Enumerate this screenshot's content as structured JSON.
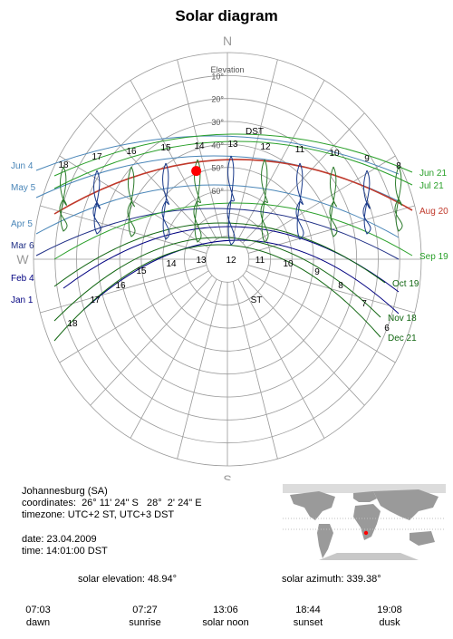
{
  "title": "Solar diagram",
  "compass": {
    "north": "N",
    "south": "S",
    "west": "W"
  },
  "elevation_label": "Elevation",
  "elevation_rings": [
    "10°",
    "20°",
    "30°",
    "40°",
    "50°",
    "60°"
  ],
  "time_modes": {
    "dst": "DST",
    "st": "ST"
  },
  "dst_hours": [
    "18",
    "17",
    "16",
    "15",
    "14",
    "13",
    "12",
    "11",
    "10",
    "9",
    "8"
  ],
  "st_hours": [
    "18",
    "17",
    "16",
    "15",
    "14",
    "13",
    "12",
    "11",
    "10",
    "9",
    "8",
    "7",
    "6"
  ],
  "date_curves": {
    "left": [
      {
        "label": "Jun 4",
        "color": "#4a86b8"
      },
      {
        "label": "May 5",
        "color": "#4a86b8"
      },
      {
        "label": "Apr 5",
        "color": "#4a86b8"
      },
      {
        "label": "Mar 6",
        "color": "#1f2f86"
      },
      {
        "label": "Feb 4",
        "color": "#000080"
      },
      {
        "label": "Jan 1",
        "color": "#000080"
      }
    ],
    "right": [
      {
        "label": "Jun 21",
        "color": "#2aa02a"
      },
      {
        "label": "Jul 21",
        "color": "#2aa02a"
      },
      {
        "label": "Aug 20",
        "color": "#c0392b"
      },
      {
        "label": "Sep 19",
        "color": "#2aa02a"
      },
      {
        "label": "Oct 19",
        "color": "#116611"
      },
      {
        "label": "Nov 18",
        "color": "#116611"
      },
      {
        "label": "Dec 21",
        "color": "#116611"
      }
    ]
  },
  "location": {
    "name": "Johannesburg (SA)",
    "coordinates_label": "coordinates:",
    "latitude": "26° 11' 24\" S",
    "longitude": "28°  2' 24\" E",
    "timezone_label": "timezone:",
    "timezone": "UTC+2 ST, UTC+3 DST"
  },
  "datetime": {
    "date_label": "date:",
    "date": "23.04.2009",
    "time_label": "time:",
    "time": "14:01:00 DST"
  },
  "solar": {
    "elevation_label": "solar elevation:",
    "elevation": "48.94°",
    "azimuth_label": "solar azimuth:",
    "azimuth": "339.38°"
  },
  "times": [
    {
      "value": "07:03",
      "label": "dawn"
    },
    {
      "value": "07:27",
      "label": "sunrise"
    },
    {
      "value": "13:06",
      "label": "solar noon"
    },
    {
      "value": "18:44",
      "label": "sunset"
    },
    {
      "value": "19:08",
      "label": "dusk"
    }
  ],
  "colors": {
    "grid": "#999999",
    "sun": "#ff0000",
    "current_path": "#c0392b",
    "map_land": "#9a9a9a"
  }
}
